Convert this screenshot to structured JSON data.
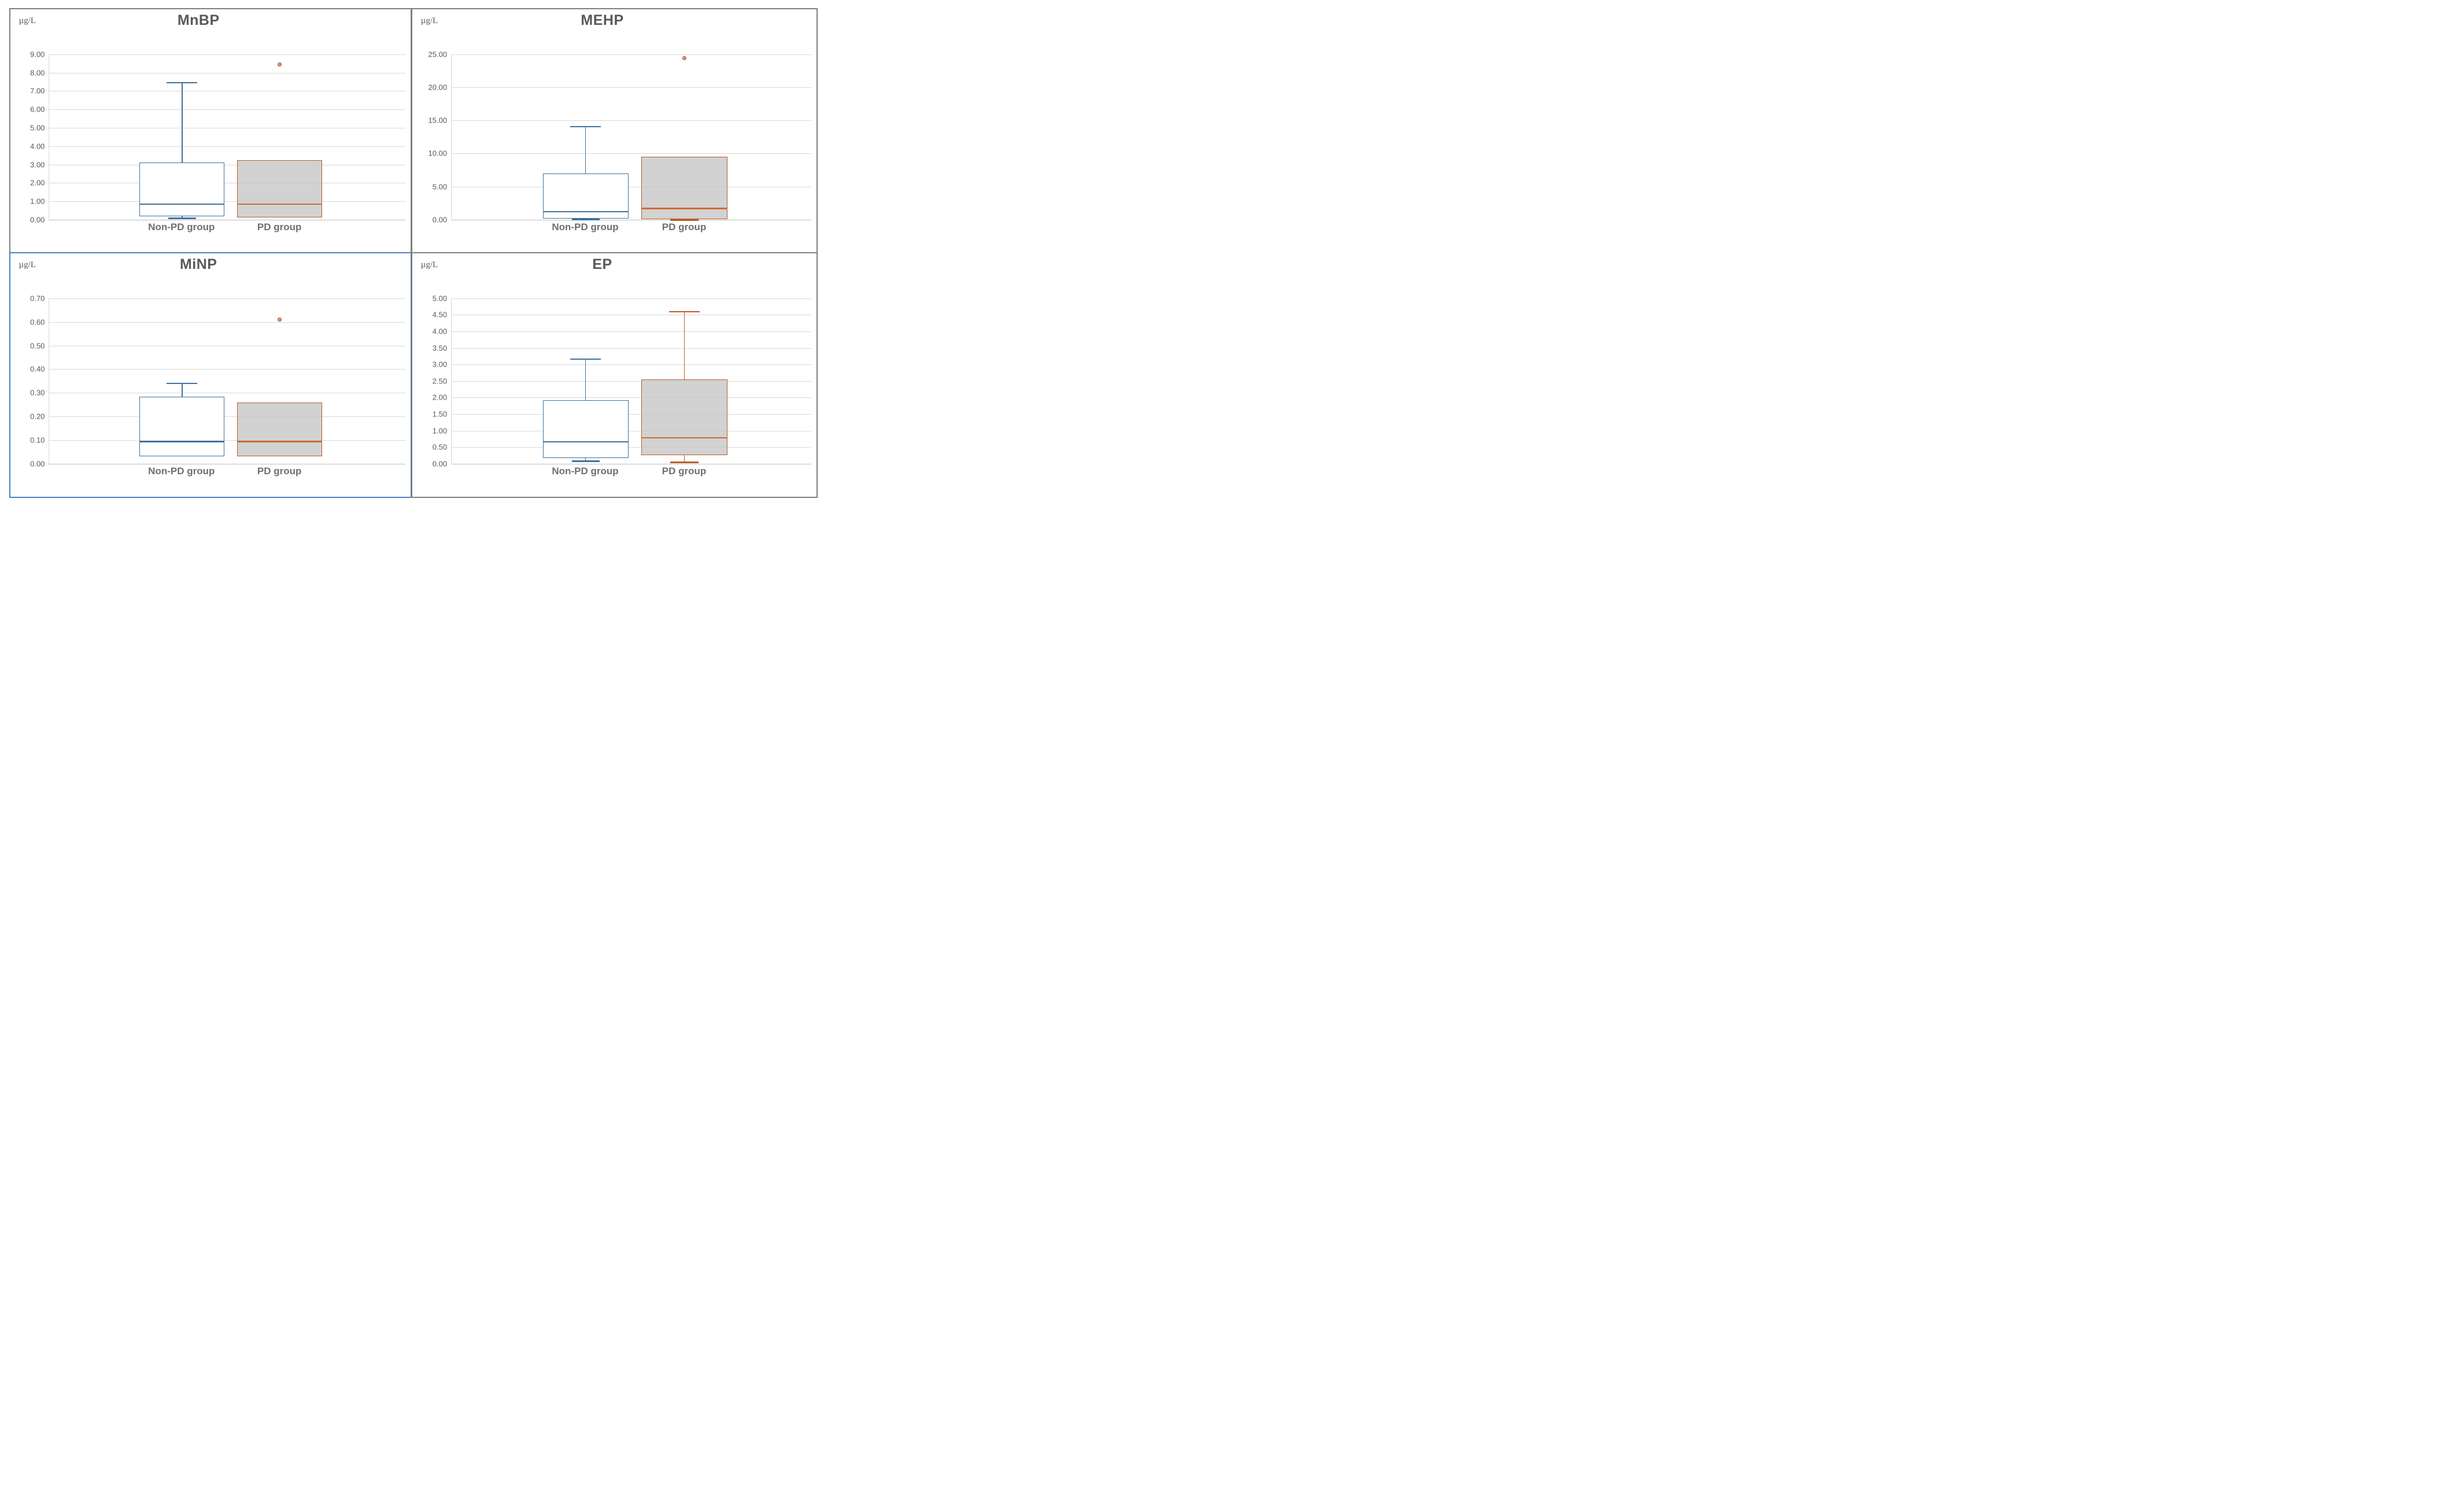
{
  "page": {
    "background": "#ffffff"
  },
  "colors": {
    "panel_border": "#7f7f7f",
    "selected_panel_border": "#4f81bd",
    "grid_line": "#d9d9d9",
    "axis_line": "#bfbfbf",
    "tick_text": "#595959",
    "title_text": "#595959",
    "category_text": "#6f6f6f",
    "series_blue_stroke": "#41719c",
    "series_blue_fill": "#ffffff",
    "series_orange_stroke": "#b95e27",
    "series_orange_fill": "rgba(200,200,200,0.82)",
    "series_orange_median": "#cf6a31",
    "outlier_stroke": "#a65c38",
    "outlier_fill": "#cf9a7f"
  },
  "chart_data": [
    {
      "type": "box",
      "title": "MnBP",
      "unit_label": "µg/L",
      "categories": [
        "Non-PD group",
        "PD group"
      ],
      "ylim": [
        0,
        9
      ],
      "ystep": 1,
      "tick_decimals": 2,
      "grid": true,
      "legend": "none",
      "series": [
        {
          "name": "Non-PD group",
          "color": "blue",
          "q1": 0.18,
          "median": 0.85,
          "q3": 3.1,
          "whisker_low": 0.08,
          "whisker_high": 7.45,
          "outliers": []
        },
        {
          "name": "PD group",
          "color": "orange",
          "q1": 0.12,
          "median": 0.85,
          "q3": 3.25,
          "whisker_low": null,
          "whisker_high": null,
          "outliers": [
            8.45
          ]
        }
      ]
    },
    {
      "type": "box",
      "title": "MEHP",
      "unit_label": "µg/L",
      "categories": [
        "Non-PD group",
        "PD group"
      ],
      "ylim": [
        0,
        25
      ],
      "ystep": 5,
      "tick_decimals": 2,
      "grid": true,
      "legend": "none",
      "series": [
        {
          "name": "Non-PD group",
          "color": "blue",
          "q1": 0.2,
          "median": 1.25,
          "q3": 7.0,
          "whisker_low": 0.05,
          "whisker_high": 14.1,
          "outliers": []
        },
        {
          "name": "PD group",
          "color": "orange",
          "q1": 0.1,
          "median": 1.7,
          "q3": 9.5,
          "whisker_low": 0.03,
          "whisker_high": null,
          "outliers": [
            24.4
          ]
        }
      ]
    },
    {
      "type": "box",
      "title": "MiNP",
      "unit_label": "µg/L",
      "selected": true,
      "categories": [
        "Non-PD group",
        "PD group"
      ],
      "ylim": [
        0,
        0.7
      ],
      "ystep": 0.1,
      "tick_decimals": 2,
      "grid": true,
      "legend": "none",
      "series": [
        {
          "name": "Non-PD group",
          "color": "blue",
          "q1": 0.031,
          "median": 0.094,
          "q3": 0.284,
          "whisker_low": null,
          "whisker_high": 0.34,
          "outliers": []
        },
        {
          "name": "PD group",
          "color": "orange",
          "q1": 0.031,
          "median": 0.094,
          "q3": 0.26,
          "whisker_low": null,
          "whisker_high": null,
          "outliers": [
            0.61
          ]
        }
      ]
    },
    {
      "type": "box",
      "title": "EP",
      "unit_label": "µg/L",
      "categories": [
        "Non-PD group",
        "PD group"
      ],
      "ylim": [
        0,
        5
      ],
      "ystep": 0.5,
      "tick_decimals": 2,
      "grid": true,
      "legend": "none",
      "series": [
        {
          "name": "Non-PD group",
          "color": "blue",
          "q1": 0.17,
          "median": 0.66,
          "q3": 1.92,
          "whisker_low": 0.08,
          "whisker_high": 3.16,
          "outliers": []
        },
        {
          "name": "PD group",
          "color": "orange",
          "q1": 0.26,
          "median": 0.79,
          "q3": 2.55,
          "whisker_low": 0.05,
          "whisker_high": 4.6,
          "outliers": []
        }
      ]
    }
  ]
}
